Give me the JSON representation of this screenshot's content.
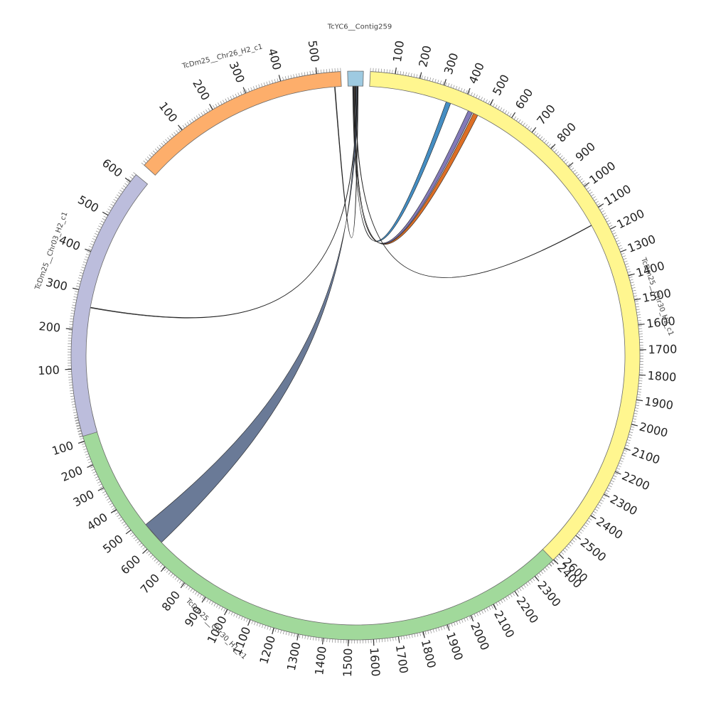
{
  "chart_data": {
    "type": "circos",
    "segments": [
      {
        "name": "TcYC6__Contig259",
        "color": "#9ecae1",
        "tick_labels": []
      },
      {
        "name": "TcDm25__Chr30_H2_c1",
        "color": "#fff68f",
        "tick_labels": [
          "100",
          "200",
          "300",
          "400",
          "500",
          "600",
          "700",
          "800",
          "900",
          "1000",
          "1100",
          "1200",
          "1300",
          "1400",
          "1500",
          "1600",
          "1700",
          "1800",
          "1900",
          "2000",
          "2100",
          "2200",
          "2300",
          "2400",
          "2500",
          "2600"
        ]
      },
      {
        "name": "TcDm25__Chr30_H1_c1",
        "color": "#a1d99b",
        "tick_labels": [
          "100",
          "200",
          "300",
          "400",
          "500",
          "600",
          "700",
          "800",
          "900",
          "1000",
          "1100",
          "1200",
          "1300",
          "1400",
          "1500",
          "1600",
          "1700",
          "1800",
          "1900",
          "2000",
          "2100",
          "2200",
          "2300",
          "2400"
        ]
      },
      {
        "name": "TcDm25__Chr03_H2_c1",
        "color": "#bcbddc",
        "tick_labels": [
          "100",
          "200",
          "300",
          "400",
          "500",
          "600"
        ]
      },
      {
        "name": "TcDm25__Chr26_H2_c1",
        "color": "#fdae6b",
        "tick_labels": [
          "100",
          "200",
          "300",
          "400",
          "500"
        ]
      }
    ],
    "links": [
      {
        "from": "TcYC6__Contig259",
        "to": "TcDm25__Chr30_H2_c1",
        "to_range": [
          330,
          350
        ],
        "color": "#3182bd"
      },
      {
        "from": "TcYC6__Contig259",
        "to": "TcDm25__Chr30_H2_c1",
        "to_range": [
          430,
          450
        ],
        "color": "#756bb1"
      },
      {
        "from": "TcYC6__Contig259",
        "to": "TcDm25__Chr30_H2_c1",
        "to_range": [
          455,
          475
        ],
        "color": "#d95f0e"
      },
      {
        "from": "TcYC6__Contig259",
        "to": "TcDm25__Chr30_H2_c1",
        "to_range": [
          1150,
          1152
        ],
        "color": "#333333"
      },
      {
        "from": "TcYC6__Contig259",
        "to": "TcDm25__Chr30_H1_c1",
        "to_range": [
          520,
          620
        ],
        "color": "#5a6b8c"
      },
      {
        "from": "TcYC6__Contig259",
        "to": "TcDm25__Chr03_H2_c1",
        "to_range": [
          260,
          262
        ],
        "color": "#333333"
      },
      {
        "from": "TcYC6__Contig259",
        "to": "TcDm25__Chr26_H2_c1",
        "to_range": [
          545,
          547
        ],
        "color": "#333333"
      }
    ]
  }
}
